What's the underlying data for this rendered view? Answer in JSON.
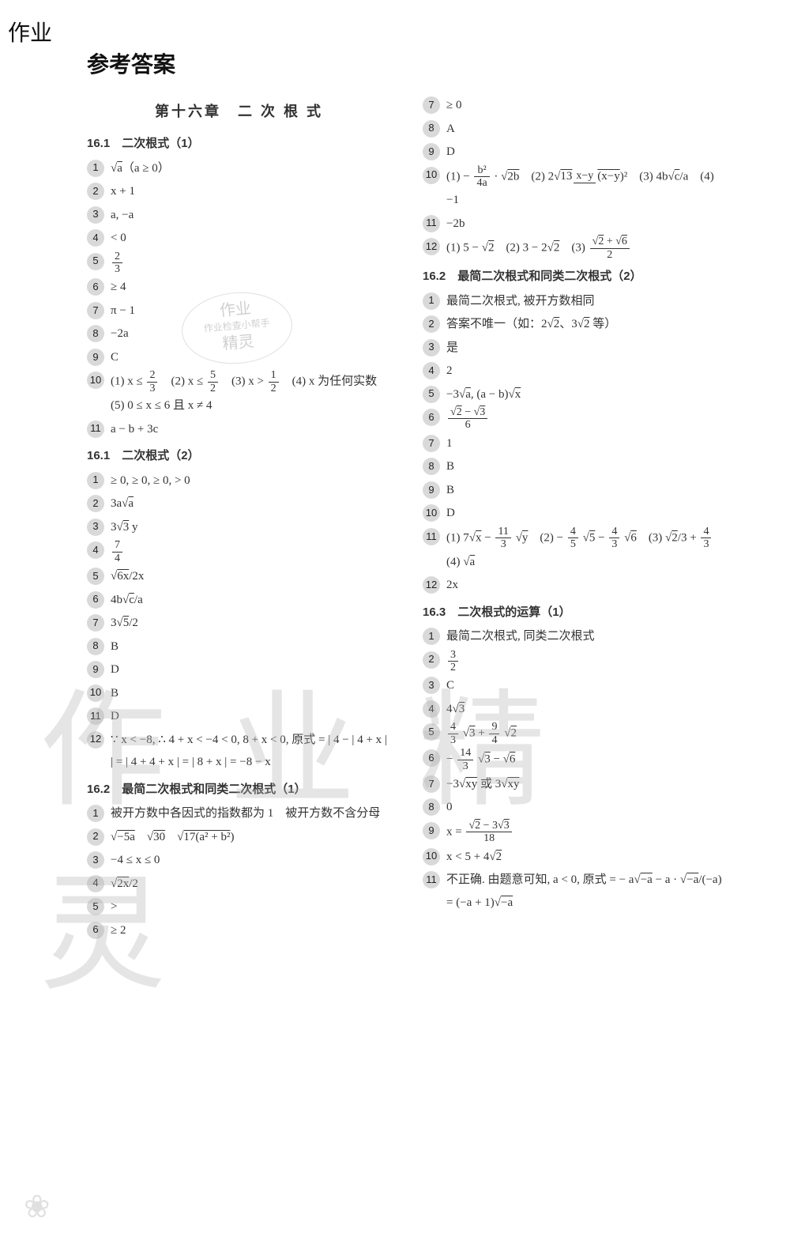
{
  "corner_tag": "作业",
  "main_title": "参考答案",
  "chapter_title": "第十六章　二 次 根 式",
  "watermark_text": "作业精灵",
  "stamp": {
    "l1": "作业",
    "l2": "作业检查小帮手",
    "l3": "精灵"
  },
  "left": {
    "s1": {
      "title": "16.1　二次根式（1）",
      "items": [
        "√a（a ≥ 0）",
        "x + 1",
        "a,  −a",
        "< 0",
        "2/3",
        "≥ 4",
        "π − 1",
        "−2a",
        "C",
        "(1) x ≤ 2/3　(2) x ≤ 5/2　(3) x > 1/2　(4) x 为任何实数　(5) 0 ≤ x ≤ 6 且 x ≠ 4",
        "a − b + 3c"
      ]
    },
    "s2": {
      "title": "16.1　二次根式（2）",
      "items": [
        "≥ 0, ≥ 0, ≥ 0, > 0",
        "3a√a",
        "3√3 y",
        "7/4",
        "√(6x) / 2x",
        "4b√c / a",
        "3√5 / 2",
        "B",
        "D",
        "B",
        "D",
        "∵ x < −8, ∴ 4 + x < −4 < 0, 8 + x < 0, 原式 = | 4 − | 4 + x | | = | 4 + 4 + x | = | 8 + x | = −8 − x"
      ]
    },
    "s3": {
      "title": "16.2　最简二次根式和同类二次根式（1）",
      "items": [
        "被开方数中各因式的指数都为 1　被开方数不含分母",
        "√(−5a)　√30　√(17(a² + b²))",
        "−4 ≤ x ≤ 0",
        "√(2x) / 2",
        ">",
        "≥ 2"
      ]
    }
  },
  "right": {
    "pre": [
      "≥ 0",
      "A",
      "D",
      "(1) − b² / 4a · √(2b)　(2) 2√(13(x−y)) / (x−y)²　(3) 4b√c / a　(4) −1",
      "−2b",
      "(1) 5 − √2　(2) 3 − 2√2　(3) (√2 + √6) / 2"
    ],
    "pre_start": 7,
    "s4": {
      "title": "16.2　最简二次根式和同类二次根式（2）",
      "items": [
        "最简二次根式, 被开方数相同",
        "答案不唯一（如：2√2、3√2 等）",
        "是",
        "2",
        "−3√a,  (a − b)√x",
        "(√2 − √3) / 6",
        "1",
        "B",
        "B",
        "D",
        "(1) 7√x − 11/3 √y　(2) − 4/5 √5 − 4/3 √6　(3) √2/3 + 4/3　(4) √a",
        "2x"
      ]
    },
    "s5": {
      "title": "16.3　二次根式的运算（1）",
      "items": [
        "最简二次根式, 同类二次根式",
        "3/2",
        "C",
        "4√3",
        "4/3 √3 + 9/4 √2",
        "− 14/3 √3 − √6",
        "−3√(xy) 或 3√(xy)",
        "0",
        "x = (√2 − 3√3) / 18",
        "x < 5 + 4√2",
        "不正确. 由题意可知, a < 0, 原式 = − a√(−a) − a · √(−a)/(−a) = (−a + 1)√(−a)"
      ]
    }
  },
  "colors": {
    "num_bg": "#d9d9d9",
    "text": "#333333",
    "title": "#111111",
    "watermark": "rgba(180,180,180,0.35)"
  },
  "typography": {
    "main_title_size": 28,
    "chapter_title_size": 18,
    "section_title_size": 15,
    "body_size": 15
  }
}
